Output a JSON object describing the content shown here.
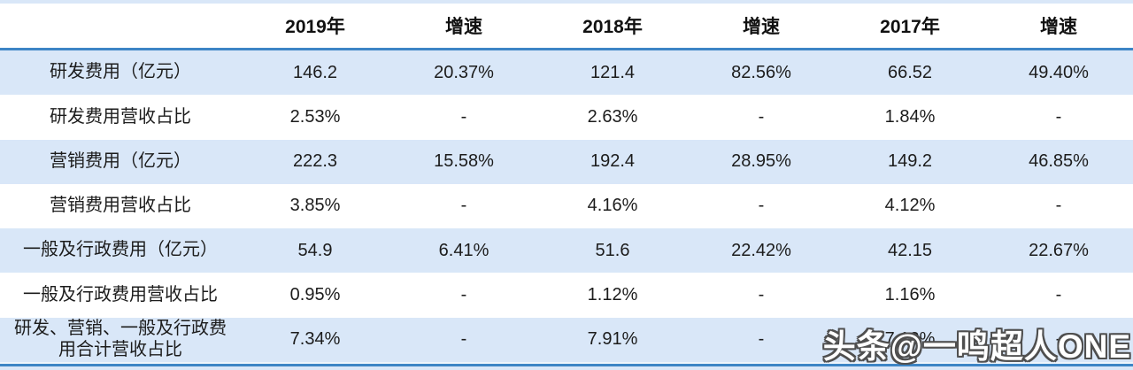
{
  "chart_data": {
    "type": "table",
    "columns": [
      "",
      "2019年",
      "增速",
      "2018年",
      "增速",
      "2017年",
      "增速"
    ],
    "rows": [
      {
        "label": "研发费用（亿元）",
        "values": [
          "146.2",
          "20.37%",
          "121.4",
          "82.56%",
          "66.52",
          "49.40%"
        ]
      },
      {
        "label": "研发费用营收占比",
        "values": [
          "2.53%",
          "-",
          "2.63%",
          "-",
          "1.84%",
          "-"
        ]
      },
      {
        "label": "营销费用（亿元）",
        "values": [
          "222.3",
          "15.58%",
          "192.4",
          "28.95%",
          "149.2",
          "46.85%"
        ]
      },
      {
        "label": "营销费用营收占比",
        "values": [
          "3.85%",
          "-",
          "4.16%",
          "-",
          "4.12%",
          "-"
        ]
      },
      {
        "label": "一般及行政费用（亿元）",
        "values": [
          "54.9",
          "6.41%",
          "51.6",
          "22.42%",
          "42.15",
          "22.67%"
        ]
      },
      {
        "label": "一般及行政费用营收占比",
        "values": [
          "0.95%",
          "-",
          "1.12%",
          "-",
          "1.16%",
          "-"
        ]
      },
      {
        "label": "研发、营销、一般及行政费\n用合计营收占比",
        "values": [
          "7.34%",
          "-",
          "7.91%",
          "-",
          "7.12%",
          "-"
        ]
      }
    ]
  },
  "watermark": {
    "text": "头条@一鸣超人ONE"
  },
  "colors": {
    "row_band": "#d9e7f8",
    "rule_blue": "#3d85c6",
    "header_text": "#111111",
    "body_text": "#1c1c1c",
    "watermark_fill": "#ffffff",
    "watermark_outline": "#4f4f4f"
  }
}
